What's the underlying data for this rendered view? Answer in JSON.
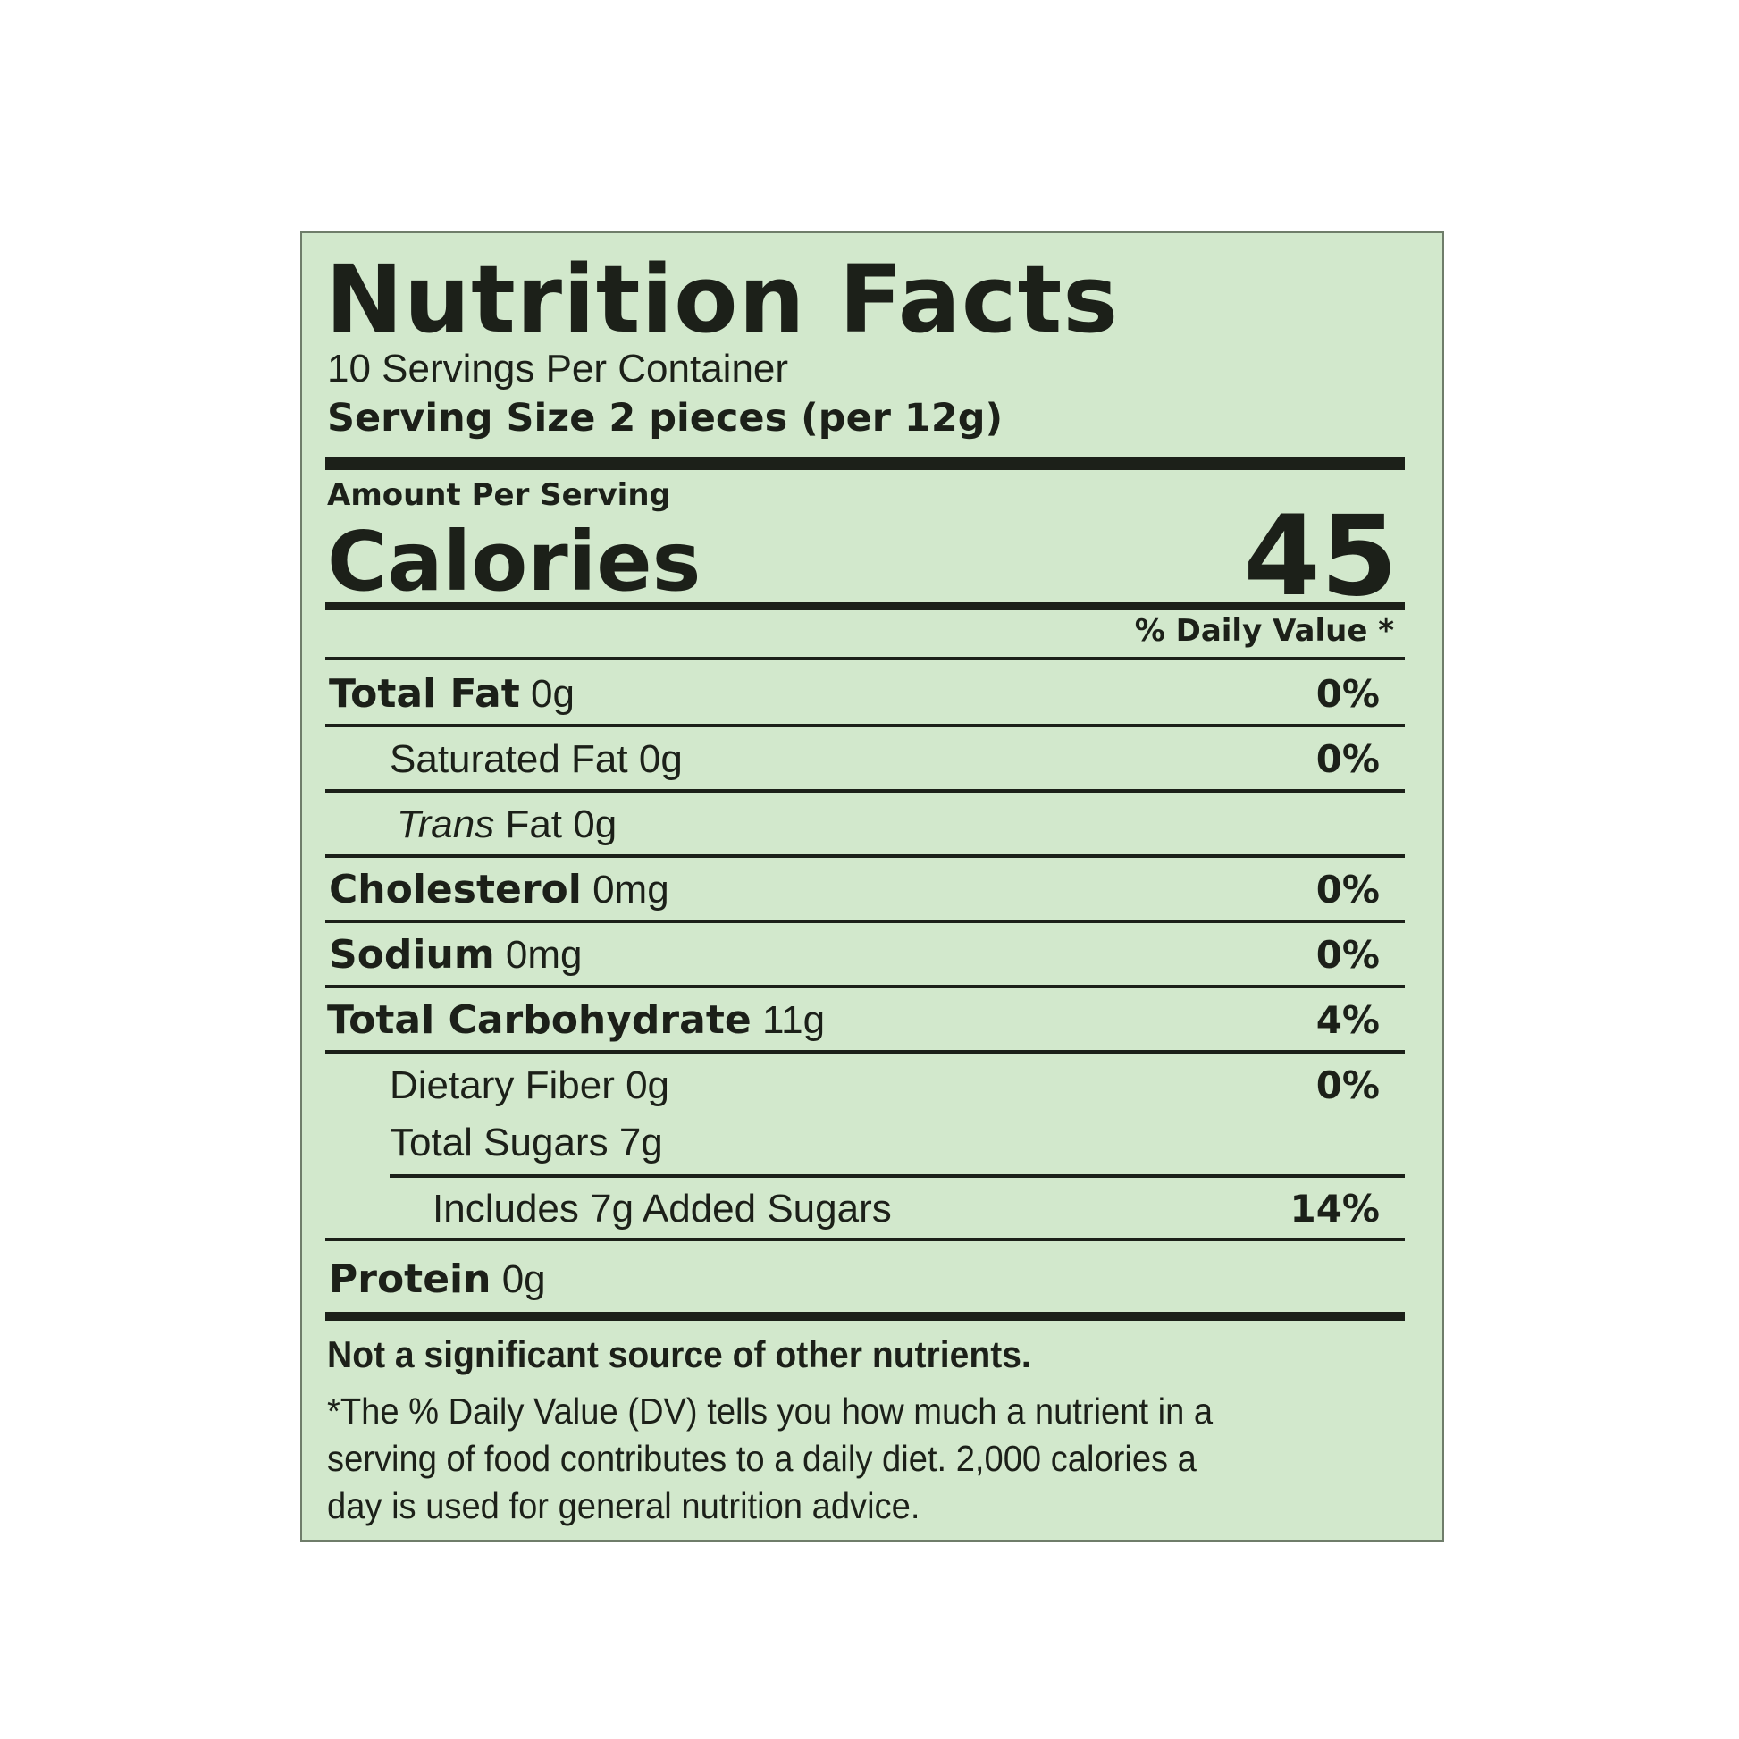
{
  "label": {
    "title": "Nutrition Facts",
    "servings_per_container": "10 Servings Per Container",
    "serving_size": "Serving Size 2 pieces (per 12g)",
    "amount_per_serving": "Amount Per Serving",
    "calories_label": "Calories",
    "calories_value": "45",
    "daily_value_header": "% Daily Value *",
    "rows": [
      {
        "name": "Total Fat",
        "amount": "0g",
        "dv": "0%"
      },
      {
        "name": "Saturated Fat",
        "amount": "0g",
        "dv": "0%"
      },
      {
        "name_italic": "Trans",
        "name": "Fat",
        "amount": "0g",
        "dv": ""
      },
      {
        "name": "Cholesterol",
        "amount": "0mg",
        "dv": "0%"
      },
      {
        "name": "Sodium",
        "amount": "0mg",
        "dv": "0%"
      },
      {
        "name": "Total Carbohydrate",
        "amount": "11g",
        "dv": "4%"
      },
      {
        "name": "Dietary Fiber",
        "amount": "0g",
        "dv": "0%"
      },
      {
        "name": "Total Sugars",
        "amount": "7g",
        "dv": ""
      },
      {
        "prefix": "Includes",
        "amount": "7g",
        "name": "Added Sugars",
        "dv": "14%"
      },
      {
        "name": "Protein",
        "amount": "0g",
        "dv": ""
      }
    ],
    "not_significant": "Not a significant source of other nutrients.",
    "footnote_lines": [
      "*The % Daily Value (DV) tells you how much a nutrient in a",
      "serving of food contributes to a daily diet. 2,000 calories a",
      "day is used for general nutrition advice."
    ],
    "colors": {
      "panel_background": "#d2e8cc",
      "ink": "#1c2019",
      "panel_border": "#6f7d6a"
    }
  }
}
